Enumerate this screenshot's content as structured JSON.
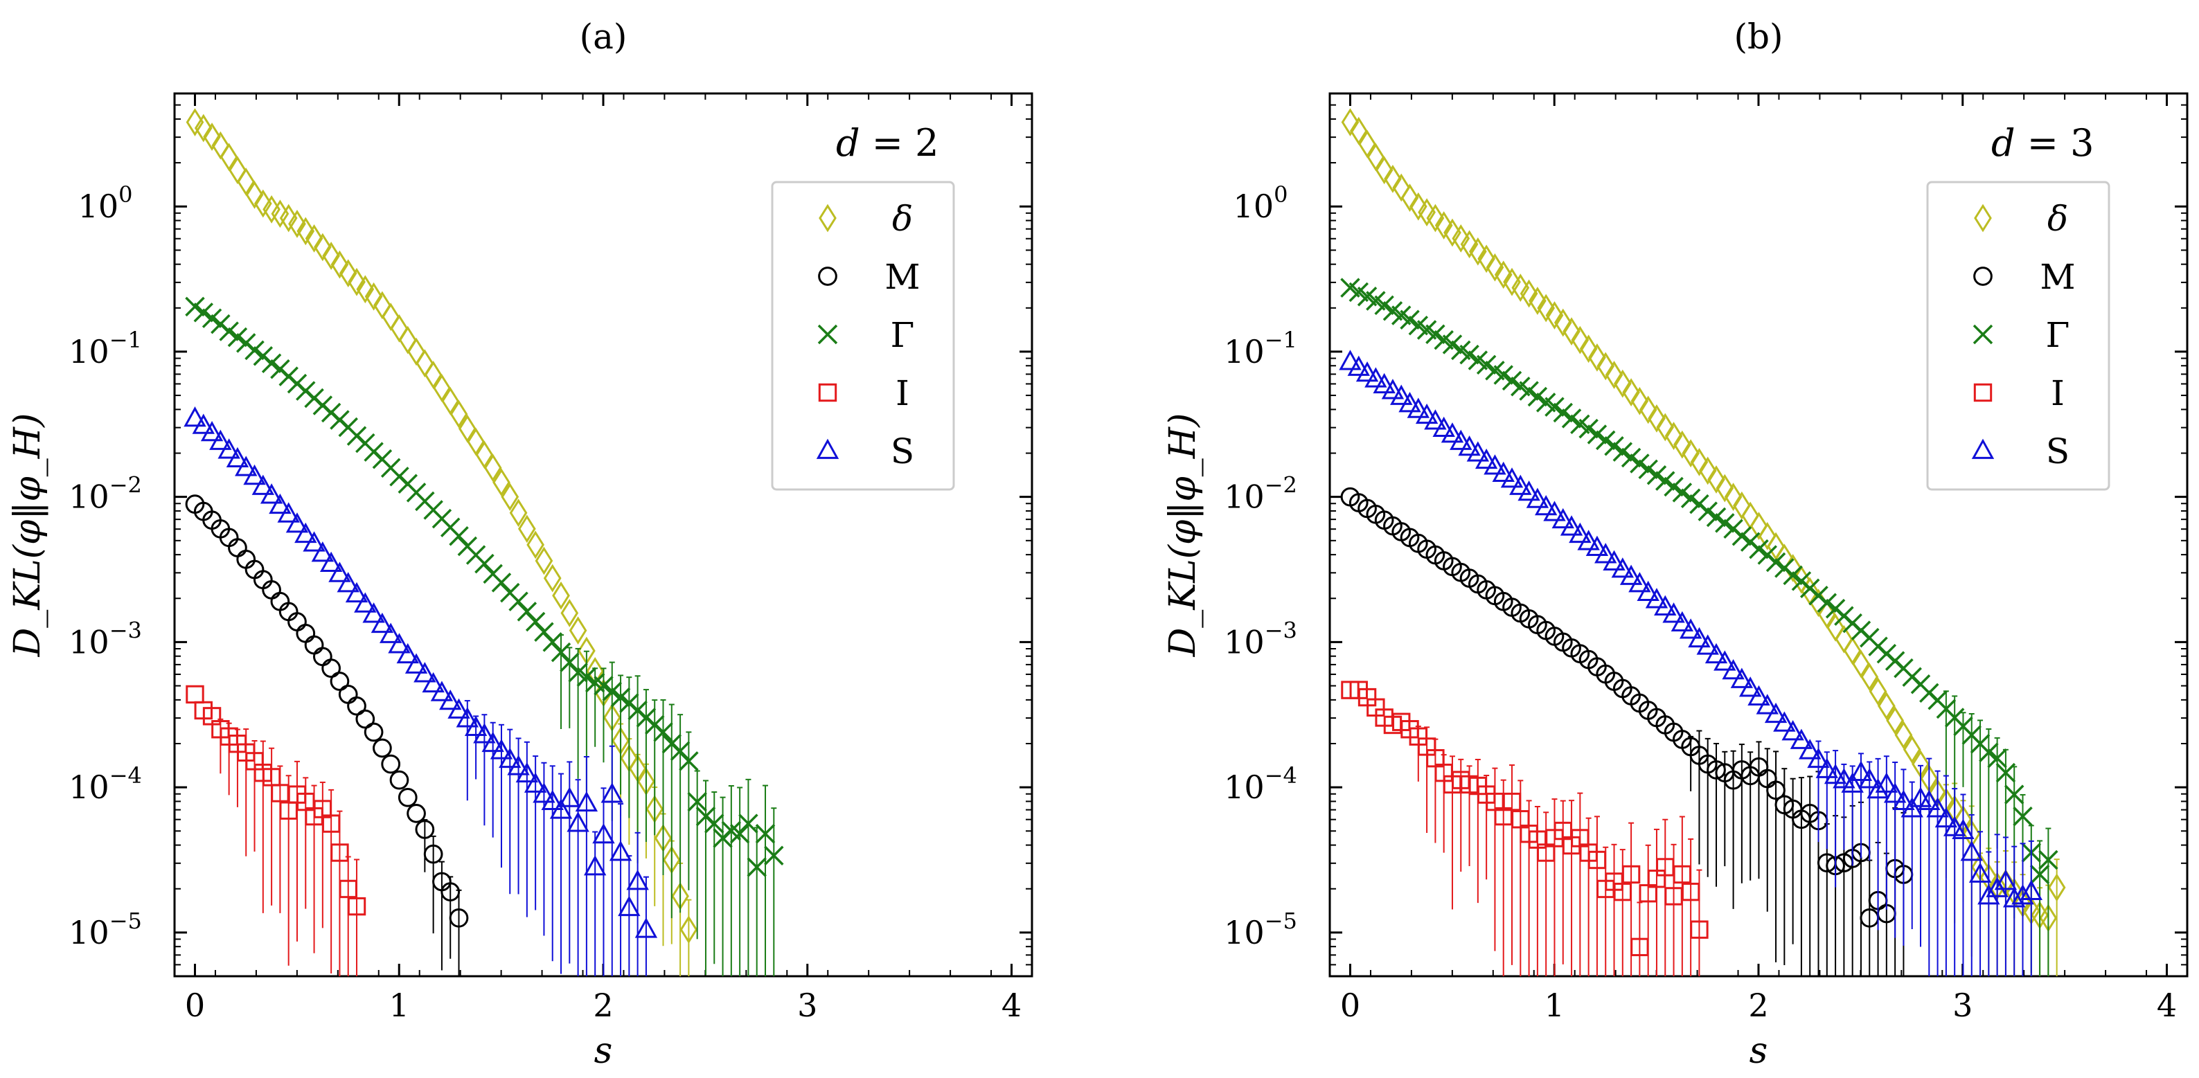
{
  "chart_data": [
    {
      "type": "scatter",
      "panel_label": "(a)",
      "annotation": "d = 2",
      "xlabel": "s",
      "ylabel": "D_KL(φ‖φ_H)",
      "xlim": [
        -0.1,
        4.1
      ],
      "ylim": [
        5e-06,
        6
      ],
      "yscale": "log",
      "xticks": [
        0,
        1,
        2,
        3,
        4
      ],
      "xtick_labels": [
        "0",
        "1",
        "2",
        "3",
        "4"
      ],
      "yticks": [
        1e-05,
        0.0001,
        0.001,
        0.01,
        0.1,
        1
      ],
      "ytick_exponents": [
        "−5",
        "−4",
        "−3",
        "−2",
        "−1",
        "0"
      ],
      "legend_position": "top-right",
      "series": [
        {
          "name": "δ",
          "marker": "diamond",
          "color": "#bcbd22",
          "x0": 0,
          "dx": 0.0417,
          "log_y": [
            0.58,
            0.54,
            0.48,
            0.42,
            0.34,
            0.25,
            0.17,
            0.08,
            0.02,
            -0.02,
            -0.05,
            -0.08,
            -0.12,
            -0.17,
            -0.22,
            -0.28,
            -0.34,
            -0.4,
            -0.46,
            -0.52,
            -0.57,
            -0.62,
            -0.68,
            -0.76,
            -0.84,
            -0.92,
            -1.0,
            -1.08,
            -1.16,
            -1.25,
            -1.34,
            -1.43,
            -1.53,
            -1.62,
            -1.71,
            -1.8,
            -1.9,
            -2.0,
            -2.11,
            -2.22,
            -2.33,
            -2.44,
            -2.56,
            -2.68,
            -2.8,
            -2.92,
            -3.06,
            -3.2,
            -3.35,
            -3.52,
            -3.68,
            -3.8,
            -3.87,
            -3.96,
            -4.15,
            -4.35,
            -4.5,
            -4.75,
            -4.98
          ],
          "err_from": 50,
          "err_growth": 0.6
        },
        {
          "name": "M",
          "marker": "circle",
          "color": "#000000",
          "x0": 0,
          "dx": 0.0417,
          "log_y": [
            -2.05,
            -2.1,
            -2.16,
            -2.22,
            -2.28,
            -2.35,
            -2.43,
            -2.5,
            -2.57,
            -2.64,
            -2.72,
            -2.79,
            -2.86,
            -2.94,
            -3.02,
            -3.1,
            -3.18,
            -3.27,
            -3.36,
            -3.44,
            -3.53,
            -3.62,
            -3.73,
            -3.84,
            -3.95,
            -4.07,
            -4.18,
            -4.29,
            -4.46,
            -4.65,
            -4.72,
            -4.9
          ],
          "err_from": 27,
          "err_growth": 0.7
        },
        {
          "name": "Γ",
          "marker": "x",
          "color": "#1b7d17",
          "x0": 0,
          "dx": 0.0417,
          "log_y": [
            -0.69,
            -0.73,
            -0.77,
            -0.81,
            -0.86,
            -0.9,
            -0.94,
            -0.99,
            -1.03,
            -1.08,
            -1.12,
            -1.17,
            -1.22,
            -1.27,
            -1.32,
            -1.37,
            -1.42,
            -1.47,
            -1.52,
            -1.58,
            -1.63,
            -1.69,
            -1.74,
            -1.8,
            -1.86,
            -1.91,
            -1.97,
            -2.03,
            -2.09,
            -2.15,
            -2.21,
            -2.27,
            -2.34,
            -2.4,
            -2.46,
            -2.53,
            -2.59,
            -2.66,
            -2.72,
            -2.79,
            -2.86,
            -2.93,
            -3.0,
            -3.07,
            -3.14,
            -3.21,
            -3.24,
            -3.28,
            -3.3,
            -3.34,
            -3.38,
            -3.42,
            -3.47,
            -3.52,
            -3.57,
            -3.62,
            -3.7,
            -3.75,
            -3.82,
            -4.1,
            -4.2,
            -4.25,
            -4.35,
            -4.3,
            -4.32,
            -4.25,
            -4.55,
            -4.32,
            -4.47
          ],
          "err_from": 43,
          "err_growth": 0.5
        },
        {
          "name": "I",
          "marker": "square",
          "color": "#e41a1c",
          "x0": 0,
          "dx": 0.0417,
          "log_y": [
            -3.36,
            -3.47,
            -3.51,
            -3.6,
            -3.65,
            -3.7,
            -3.76,
            -3.82,
            -3.9,
            -3.93,
            -4.04,
            -4.16,
            -4.05,
            -4.1,
            -4.2,
            -4.15,
            -4.25,
            -4.45,
            -4.7,
            -4.82
          ],
          "err_from": 3,
          "err_growth": 0.6
        },
        {
          "name": "S",
          "marker": "triangle",
          "color": "#1010d8",
          "x0": 0,
          "dx": 0.0417,
          "log_y": [
            -1.46,
            -1.51,
            -1.56,
            -1.62,
            -1.68,
            -1.74,
            -1.8,
            -1.86,
            -1.93,
            -1.99,
            -2.06,
            -2.12,
            -2.19,
            -2.26,
            -2.32,
            -2.39,
            -2.46,
            -2.53,
            -2.6,
            -2.67,
            -2.74,
            -2.81,
            -2.88,
            -2.95,
            -3.02,
            -3.09,
            -3.16,
            -3.22,
            -3.29,
            -3.35,
            -3.41,
            -3.47,
            -3.53,
            -3.59,
            -3.64,
            -3.7,
            -3.75,
            -3.81,
            -3.86,
            -3.91,
            -3.98,
            -4.05,
            -4.1,
            -4.16,
            -4.08,
            -4.25,
            -4.11,
            -4.55,
            -4.33,
            -4.05,
            -4.45,
            -4.83,
            -4.65,
            -4.98
          ],
          "err_from": 32,
          "err_growth": 0.7
        }
      ]
    },
    {
      "type": "scatter",
      "panel_label": "(b)",
      "annotation": "d = 3",
      "xlabel": "s",
      "ylabel": "D_KL(φ‖φ_H)",
      "xlim": [
        -0.1,
        4.1
      ],
      "ylim": [
        5e-06,
        6
      ],
      "yscale": "log",
      "xticks": [
        0,
        1,
        2,
        3,
        4
      ],
      "xtick_labels": [
        "0",
        "1",
        "2",
        "3",
        "4"
      ],
      "yticks": [
        1e-05,
        0.0001,
        0.001,
        0.01,
        0.1,
        1
      ],
      "ytick_exponents": [
        "−5",
        "−4",
        "−3",
        "−2",
        "−1",
        "0"
      ],
      "legend_position": "top-right",
      "series": [
        {
          "name": "δ",
          "marker": "diamond",
          "color": "#bcbd22",
          "x0": 0,
          "dx": 0.0417,
          "log_y": [
            0.58,
            0.52,
            0.43,
            0.34,
            0.25,
            0.19,
            0.13,
            0.06,
            0.0,
            -0.04,
            -0.08,
            -0.13,
            -0.18,
            -0.22,
            -0.26,
            -0.31,
            -0.36,
            -0.42,
            -0.47,
            -0.52,
            -0.56,
            -0.6,
            -0.65,
            -0.7,
            -0.75,
            -0.8,
            -0.86,
            -0.92,
            -0.98,
            -1.04,
            -1.1,
            -1.16,
            -1.22,
            -1.28,
            -1.34,
            -1.4,
            -1.46,
            -1.52,
            -1.58,
            -1.64,
            -1.7,
            -1.76,
            -1.82,
            -1.88,
            -1.94,
            -2.0,
            -2.06,
            -2.13,
            -2.2,
            -2.27,
            -2.34,
            -2.42,
            -2.49,
            -2.57,
            -2.65,
            -2.73,
            -2.81,
            -2.9,
            -2.98,
            -3.06,
            -3.15,
            -3.24,
            -3.34,
            -3.44,
            -3.54,
            -3.64,
            -3.74,
            -3.84,
            -3.94,
            -4.04,
            -4.1,
            -4.15,
            -4.22,
            -4.32,
            -4.55,
            -4.62,
            -4.68,
            -4.66,
            -4.72,
            -4.8,
            -4.85,
            -4.88,
            -4.9,
            -4.69
          ],
          "err_from": 70,
          "err_growth": 0.5
        },
        {
          "name": "M",
          "marker": "circle",
          "color": "#000000",
          "x0": 0,
          "dx": 0.0417,
          "log_y": [
            -2.0,
            -2.04,
            -2.08,
            -2.12,
            -2.16,
            -2.2,
            -2.24,
            -2.28,
            -2.32,
            -2.36,
            -2.4,
            -2.44,
            -2.48,
            -2.52,
            -2.56,
            -2.6,
            -2.64,
            -2.68,
            -2.72,
            -2.76,
            -2.8,
            -2.84,
            -2.88,
            -2.92,
            -2.96,
            -3.0,
            -3.04,
            -3.08,
            -3.12,
            -3.17,
            -3.22,
            -3.27,
            -3.32,
            -3.37,
            -3.42,
            -3.47,
            -3.52,
            -3.57,
            -3.62,
            -3.67,
            -3.72,
            -3.78,
            -3.84,
            -3.88,
            -3.9,
            -3.95,
            -3.88,
            -3.92,
            -3.86,
            -3.94,
            -4.02,
            -4.12,
            -4.15,
            -4.22,
            -4.18,
            -4.23,
            -4.52,
            -4.54,
            -4.52,
            -4.49,
            -4.45,
            -4.9,
            -4.78,
            -4.87,
            -4.56,
            -4.6
          ],
          "err_from": 40,
          "err_growth": 0.7
        },
        {
          "name": "Γ",
          "marker": "x",
          "color": "#1b7d17",
          "x0": 0,
          "dx": 0.0417,
          "log_y": [
            -0.56,
            -0.59,
            -0.62,
            -0.65,
            -0.68,
            -0.72,
            -0.75,
            -0.78,
            -0.82,
            -0.85,
            -0.88,
            -0.92,
            -0.95,
            -0.99,
            -1.02,
            -1.06,
            -1.09,
            -1.13,
            -1.16,
            -1.2,
            -1.24,
            -1.27,
            -1.31,
            -1.35,
            -1.38,
            -1.42,
            -1.46,
            -1.5,
            -1.53,
            -1.57,
            -1.61,
            -1.65,
            -1.69,
            -1.73,
            -1.77,
            -1.81,
            -1.85,
            -1.89,
            -1.93,
            -1.97,
            -2.01,
            -2.05,
            -2.1,
            -2.14,
            -2.18,
            -2.22,
            -2.27,
            -2.31,
            -2.36,
            -2.4,
            -2.45,
            -2.49,
            -2.54,
            -2.58,
            -2.63,
            -2.68,
            -2.73,
            -2.77,
            -2.82,
            -2.87,
            -2.92,
            -2.97,
            -3.03,
            -3.08,
            -3.13,
            -3.18,
            -3.24,
            -3.29,
            -3.35,
            -3.4,
            -3.46,
            -3.52,
            -3.58,
            -3.64,
            -3.7,
            -3.76,
            -3.8,
            -3.9,
            -4.05,
            -4.2,
            -4.45,
            -4.6,
            -4.5
          ],
          "err_from": 70,
          "err_growth": 0.5
        },
        {
          "name": "I",
          "marker": "square",
          "color": "#e41a1c",
          "x0": 0,
          "dx": 0.0417,
          "log_y": [
            -3.33,
            -3.33,
            -3.38,
            -3.45,
            -3.52,
            -3.57,
            -3.55,
            -3.6,
            -3.65,
            -3.72,
            -3.8,
            -3.9,
            -3.98,
            -3.95,
            -3.98,
            -3.99,
            -4.05,
            -4.1,
            -4.2,
            -4.1,
            -4.22,
            -4.32,
            -4.36,
            -4.45,
            -4.35,
            -4.3,
            -4.4,
            -4.35,
            -4.45,
            -4.5,
            -4.7,
            -4.65,
            -4.72,
            -4.6,
            -5.1,
            -4.73,
            -4.63,
            -4.55,
            -4.75,
            -4.6,
            -4.72,
            -4.98
          ],
          "err_from": 8,
          "err_growth": 0.5
        },
        {
          "name": "S",
          "marker": "triangle",
          "color": "#1010d8",
          "x0": 0,
          "dx": 0.0417,
          "log_y": [
            -1.07,
            -1.11,
            -1.15,
            -1.19,
            -1.23,
            -1.27,
            -1.31,
            -1.36,
            -1.4,
            -1.44,
            -1.48,
            -1.53,
            -1.57,
            -1.62,
            -1.66,
            -1.7,
            -1.75,
            -1.79,
            -1.84,
            -1.88,
            -1.93,
            -1.97,
            -2.02,
            -2.07,
            -2.11,
            -2.16,
            -2.21,
            -2.26,
            -2.31,
            -2.35,
            -2.4,
            -2.45,
            -2.5,
            -2.55,
            -2.6,
            -2.66,
            -2.71,
            -2.76,
            -2.81,
            -2.87,
            -2.92,
            -2.98,
            -3.03,
            -3.09,
            -3.14,
            -3.2,
            -3.26,
            -3.32,
            -3.38,
            -3.44,
            -3.5,
            -3.56,
            -3.62,
            -3.68,
            -3.75,
            -3.81,
            -3.88,
            -3.92,
            -3.95,
            -3.98,
            -3.9,
            -3.95,
            -4.02,
            -3.98,
            -4.05,
            -4.1,
            -4.15,
            -4.08,
            -4.1,
            -4.15,
            -4.22,
            -4.28,
            -4.3,
            -4.45,
            -4.6,
            -4.75,
            -4.7,
            -4.65,
            -4.77,
            -4.75,
            -4.72
          ],
          "err_from": 55,
          "err_growth": 0.6
        }
      ]
    }
  ]
}
